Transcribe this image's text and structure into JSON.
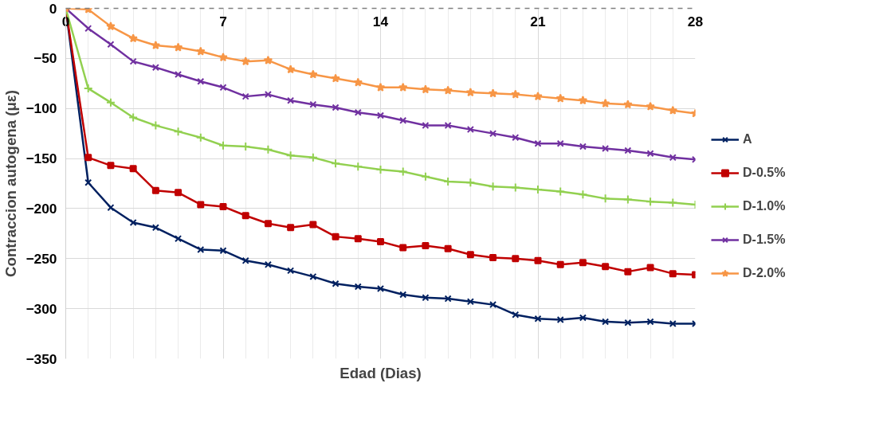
{
  "chart_data": {
    "type": "line",
    "xlabel": "Edad (Dias)",
    "ylabel": "Contraccion autogena (με)",
    "x": [
      0,
      1,
      2,
      3,
      4,
      5,
      6,
      7,
      8,
      9,
      10,
      11,
      12,
      13,
      14,
      15,
      16,
      17,
      18,
      19,
      20,
      21,
      22,
      23,
      24,
      25,
      26,
      27,
      28
    ],
    "series": [
      {
        "name": "A",
        "color": "#002060",
        "marker": "x",
        "values": [
          0,
          -174,
          -199,
          -214,
          -219,
          -230,
          -241,
          -242,
          -252,
          -256,
          -262,
          -268,
          -275,
          -278,
          -280,
          -286,
          -289,
          -290,
          -293,
          -296,
          -306,
          -310,
          -311,
          -309,
          -313,
          -314,
          -313,
          -315,
          -315
        ]
      },
      {
        "name": "D-0.5%",
        "color": "#c00000",
        "marker": "square",
        "values": [
          0,
          -149,
          -157,
          -160,
          -182,
          -184,
          -196,
          -198,
          -207,
          -215,
          -219,
          -216,
          -228,
          -230,
          -233,
          -239,
          -237,
          -240,
          -246,
          -249,
          -250,
          -252,
          -256,
          -254,
          -258,
          -263,
          -259,
          -265,
          -266
        ]
      },
      {
        "name": "D-1.0%",
        "color": "#92d050",
        "marker": "cross",
        "values": [
          0,
          -80,
          -94,
          -109,
          -117,
          -123,
          -129,
          -137,
          -138,
          -141,
          -147,
          -149,
          -155,
          -158,
          -161,
          -163,
          -168,
          -173,
          -174,
          -178,
          -179,
          -181,
          -183,
          -186,
          -190,
          -191,
          -193,
          -194,
          -196
        ]
      },
      {
        "name": "D-1.5%",
        "color": "#7030a0",
        "marker": "x",
        "values": [
          0,
          -20,
          -36,
          -53,
          -59,
          -66,
          -73,
          -79,
          -88,
          -86,
          -92,
          -96,
          -99,
          -104,
          -107,
          -112,
          -117,
          -117,
          -121,
          -125,
          -129,
          -135,
          -135,
          -138,
          -140,
          -142,
          -145,
          -149,
          -151
        ]
      },
      {
        "name": "D-2.0%",
        "color": "#f79646",
        "marker": "star",
        "values": [
          0,
          -1,
          -18,
          -30,
          -37,
          -39,
          -43,
          -49,
          -53,
          -52,
          -61,
          -66,
          -70,
          -74,
          -79,
          -79,
          -81,
          -82,
          -84,
          -85,
          -86,
          -88,
          -90,
          -92,
          -95,
          -96,
          -98,
          -102,
          -105
        ]
      }
    ],
    "xlim": [
      0,
      28
    ],
    "xticks": [
      0,
      7,
      14,
      21,
      28
    ],
    "ylim": [
      -350,
      0
    ],
    "yticks": [
      0,
      -50,
      -100,
      -150,
      -200,
      -250,
      -300,
      -350
    ],
    "grid": true,
    "legend": "right",
    "line_style": "solid"
  }
}
